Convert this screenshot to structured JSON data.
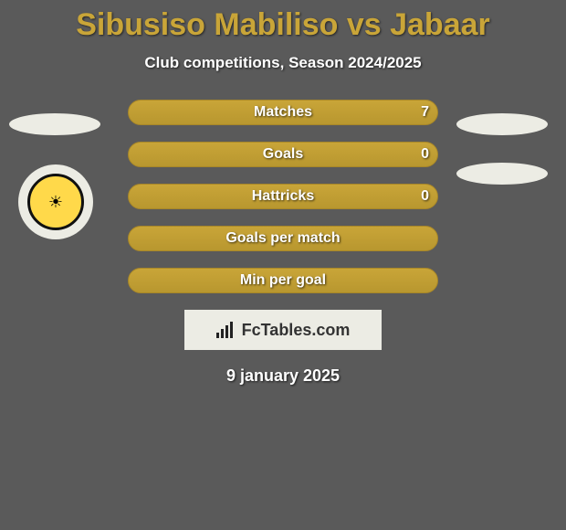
{
  "title": "Sibusiso Mabiliso vs Jabaar",
  "subtitle": "Club competitions, Season 2024/2025",
  "colors": {
    "gold": "#c9a538",
    "background": "#5a5a5a",
    "badge_bg": "#ecece4",
    "text_white": "#ffffff",
    "text_dark": "#333333"
  },
  "logo": {
    "name": "kaizer-chiefs",
    "bg": "#ffd94a",
    "border": "#111111",
    "glyph": "☀"
  },
  "stats": [
    {
      "key": "matches",
      "label": "Matches",
      "value": "7",
      "fill": 1.0
    },
    {
      "key": "goals",
      "label": "Goals",
      "value": "0",
      "fill": 1.0
    },
    {
      "key": "hattricks",
      "label": "Hattricks",
      "value": "0",
      "fill": 1.0
    },
    {
      "key": "goals-per-match",
      "label": "Goals per match",
      "value": "",
      "fill": 1.0
    },
    {
      "key": "min-per-goal",
      "label": "Min per goal",
      "value": "",
      "fill": 1.0
    }
  ],
  "brand": "FcTables.com",
  "date": "9 january 2025"
}
